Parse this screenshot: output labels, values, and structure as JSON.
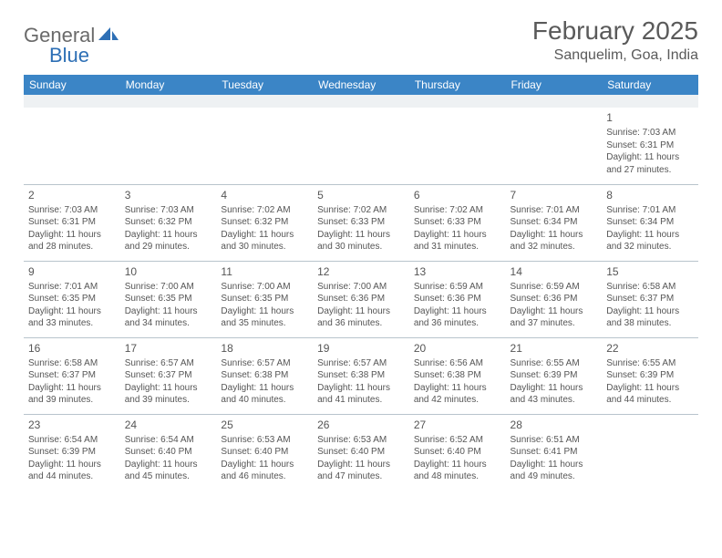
{
  "logo": {
    "text1": "General",
    "text2": "Blue"
  },
  "title": "February 2025",
  "location": "Sanquelim, Goa, India",
  "colors": {
    "header_bg": "#3b85c6",
    "header_text": "#ffffff",
    "blank_row_bg": "#eef1f3",
    "border": "#b8c4cc",
    "text": "#555555",
    "logo_gray": "#6a6a6a",
    "logo_blue": "#2d6fb5"
  },
  "day_headers": [
    "Sunday",
    "Monday",
    "Tuesday",
    "Wednesday",
    "Thursday",
    "Friday",
    "Saturday"
  ],
  "weeks": [
    [
      null,
      null,
      null,
      null,
      null,
      null,
      {
        "n": "1",
        "sr": "7:03 AM",
        "ss": "6:31 PM",
        "dl": "11 hours and 27 minutes."
      }
    ],
    [
      {
        "n": "2",
        "sr": "7:03 AM",
        "ss": "6:31 PM",
        "dl": "11 hours and 28 minutes."
      },
      {
        "n": "3",
        "sr": "7:03 AM",
        "ss": "6:32 PM",
        "dl": "11 hours and 29 minutes."
      },
      {
        "n": "4",
        "sr": "7:02 AM",
        "ss": "6:32 PM",
        "dl": "11 hours and 30 minutes."
      },
      {
        "n": "5",
        "sr": "7:02 AM",
        "ss": "6:33 PM",
        "dl": "11 hours and 30 minutes."
      },
      {
        "n": "6",
        "sr": "7:02 AM",
        "ss": "6:33 PM",
        "dl": "11 hours and 31 minutes."
      },
      {
        "n": "7",
        "sr": "7:01 AM",
        "ss": "6:34 PM",
        "dl": "11 hours and 32 minutes."
      },
      {
        "n": "8",
        "sr": "7:01 AM",
        "ss": "6:34 PM",
        "dl": "11 hours and 32 minutes."
      }
    ],
    [
      {
        "n": "9",
        "sr": "7:01 AM",
        "ss": "6:35 PM",
        "dl": "11 hours and 33 minutes."
      },
      {
        "n": "10",
        "sr": "7:00 AM",
        "ss": "6:35 PM",
        "dl": "11 hours and 34 minutes."
      },
      {
        "n": "11",
        "sr": "7:00 AM",
        "ss": "6:35 PM",
        "dl": "11 hours and 35 minutes."
      },
      {
        "n": "12",
        "sr": "7:00 AM",
        "ss": "6:36 PM",
        "dl": "11 hours and 36 minutes."
      },
      {
        "n": "13",
        "sr": "6:59 AM",
        "ss": "6:36 PM",
        "dl": "11 hours and 36 minutes."
      },
      {
        "n": "14",
        "sr": "6:59 AM",
        "ss": "6:36 PM",
        "dl": "11 hours and 37 minutes."
      },
      {
        "n": "15",
        "sr": "6:58 AM",
        "ss": "6:37 PM",
        "dl": "11 hours and 38 minutes."
      }
    ],
    [
      {
        "n": "16",
        "sr": "6:58 AM",
        "ss": "6:37 PM",
        "dl": "11 hours and 39 minutes."
      },
      {
        "n": "17",
        "sr": "6:57 AM",
        "ss": "6:37 PM",
        "dl": "11 hours and 39 minutes."
      },
      {
        "n": "18",
        "sr": "6:57 AM",
        "ss": "6:38 PM",
        "dl": "11 hours and 40 minutes."
      },
      {
        "n": "19",
        "sr": "6:57 AM",
        "ss": "6:38 PM",
        "dl": "11 hours and 41 minutes."
      },
      {
        "n": "20",
        "sr": "6:56 AM",
        "ss": "6:38 PM",
        "dl": "11 hours and 42 minutes."
      },
      {
        "n": "21",
        "sr": "6:55 AM",
        "ss": "6:39 PM",
        "dl": "11 hours and 43 minutes."
      },
      {
        "n": "22",
        "sr": "6:55 AM",
        "ss": "6:39 PM",
        "dl": "11 hours and 44 minutes."
      }
    ],
    [
      {
        "n": "23",
        "sr": "6:54 AM",
        "ss": "6:39 PM",
        "dl": "11 hours and 44 minutes."
      },
      {
        "n": "24",
        "sr": "6:54 AM",
        "ss": "6:40 PM",
        "dl": "11 hours and 45 minutes."
      },
      {
        "n": "25",
        "sr": "6:53 AM",
        "ss": "6:40 PM",
        "dl": "11 hours and 46 minutes."
      },
      {
        "n": "26",
        "sr": "6:53 AM",
        "ss": "6:40 PM",
        "dl": "11 hours and 47 minutes."
      },
      {
        "n": "27",
        "sr": "6:52 AM",
        "ss": "6:40 PM",
        "dl": "11 hours and 48 minutes."
      },
      {
        "n": "28",
        "sr": "6:51 AM",
        "ss": "6:41 PM",
        "dl": "11 hours and 49 minutes."
      },
      null
    ]
  ],
  "labels": {
    "sunrise": "Sunrise:",
    "sunset": "Sunset:",
    "daylight": "Daylight:"
  }
}
